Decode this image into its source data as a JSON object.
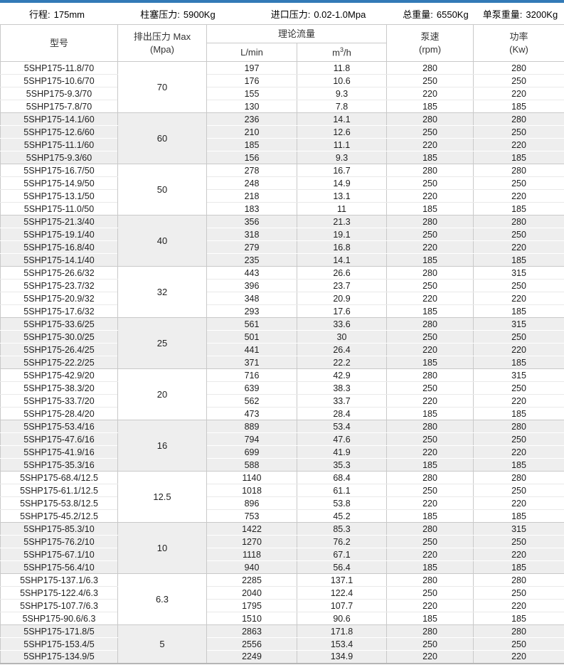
{
  "colors": {
    "accent": "#337ab7",
    "group_alt_bg": "#eeeeee",
    "border": "#c9c9c9"
  },
  "summary": {
    "items": [
      {
        "label": "行程:",
        "value": "175mm"
      },
      {
        "label": "柱塞压力:",
        "value": "5900Kg"
      },
      {
        "label": "进口压力:",
        "value": "0.02-1.0Mpa"
      },
      {
        "label": "总重量:",
        "value": "6550Kg"
      },
      {
        "label": "单泵重量:",
        "value": "3200Kg"
      }
    ]
  },
  "table": {
    "headers": {
      "model": "型号",
      "pressure_line1": "排出压力 Max",
      "pressure_line2": "(Mpa)",
      "flow": "理论流量",
      "flow_lmin": "L/min",
      "flow_m3h_base": "m",
      "flow_m3h_sup": "3",
      "flow_m3h_rest": "/h",
      "speed_line1": "泵速",
      "speed_line2": "(rpm)",
      "power_line1": "功率",
      "power_line2": "(Kw)"
    },
    "groups": [
      {
        "pressure": "70",
        "rows": [
          {
            "model": "5SHP175-11.8/70",
            "lmin": "197",
            "m3h": "11.8",
            "rpm": "280",
            "kw": "280"
          },
          {
            "model": "5SHP175-10.6/70",
            "lmin": "176",
            "m3h": "10.6",
            "rpm": "250",
            "kw": "250"
          },
          {
            "model": "5SHP175-9.3/70",
            "lmin": "155",
            "m3h": "9.3",
            "rpm": "220",
            "kw": "220"
          },
          {
            "model": "5SHP175-7.8/70",
            "lmin": "130",
            "m3h": "7.8",
            "rpm": "185",
            "kw": "185"
          }
        ]
      },
      {
        "pressure": "60",
        "rows": [
          {
            "model": "5SHP175-14.1/60",
            "lmin": "236",
            "m3h": "14.1",
            "rpm": "280",
            "kw": "280"
          },
          {
            "model": "5SHP175-12.6/60",
            "lmin": "210",
            "m3h": "12.6",
            "rpm": "250",
            "kw": "250"
          },
          {
            "model": "5SHP175-11.1/60",
            "lmin": "185",
            "m3h": "11.1",
            "rpm": "220",
            "kw": "220"
          },
          {
            "model": "5SHP175-9.3/60",
            "lmin": "156",
            "m3h": "9.3",
            "rpm": "185",
            "kw": "185"
          }
        ]
      },
      {
        "pressure": "50",
        "rows": [
          {
            "model": "5SHP175-16.7/50",
            "lmin": "278",
            "m3h": "16.7",
            "rpm": "280",
            "kw": "280"
          },
          {
            "model": "5SHP175-14.9/50",
            "lmin": "248",
            "m3h": "14.9",
            "rpm": "250",
            "kw": "250"
          },
          {
            "model": "5SHP175-13.1/50",
            "lmin": "218",
            "m3h": "13.1",
            "rpm": "220",
            "kw": "220"
          },
          {
            "model": "5SHP175-11.0/50",
            "lmin": "183",
            "m3h": "11",
            "rpm": "185",
            "kw": "185"
          }
        ]
      },
      {
        "pressure": "40",
        "rows": [
          {
            "model": "5SHP175-21.3/40",
            "lmin": "356",
            "m3h": "21.3",
            "rpm": "280",
            "kw": "280"
          },
          {
            "model": "5SHP175-19.1/40",
            "lmin": "318",
            "m3h": "19.1",
            "rpm": "250",
            "kw": "250"
          },
          {
            "model": "5SHP175-16.8/40",
            "lmin": "279",
            "m3h": "16.8",
            "rpm": "220",
            "kw": "220"
          },
          {
            "model": "5SHP175-14.1/40",
            "lmin": "235",
            "m3h": "14.1",
            "rpm": "185",
            "kw": "185"
          }
        ]
      },
      {
        "pressure": "32",
        "rows": [
          {
            "model": "5SHP175-26.6/32",
            "lmin": "443",
            "m3h": "26.6",
            "rpm": "280",
            "kw": "315"
          },
          {
            "model": "5SHP175-23.7/32",
            "lmin": "396",
            "m3h": "23.7",
            "rpm": "250",
            "kw": "250"
          },
          {
            "model": "5SHP175-20.9/32",
            "lmin": "348",
            "m3h": "20.9",
            "rpm": "220",
            "kw": "220"
          },
          {
            "model": "5SHP175-17.6/32",
            "lmin": "293",
            "m3h": "17.6",
            "rpm": "185",
            "kw": "185"
          }
        ]
      },
      {
        "pressure": "25",
        "rows": [
          {
            "model": "5SHP175-33.6/25",
            "lmin": "561",
            "m3h": "33.6",
            "rpm": "280",
            "kw": "315"
          },
          {
            "model": "5SHP175-30.0/25",
            "lmin": "501",
            "m3h": "30",
            "rpm": "250",
            "kw": "250"
          },
          {
            "model": "5SHP175-26.4/25",
            "lmin": "441",
            "m3h": "26.4",
            "rpm": "220",
            "kw": "220"
          },
          {
            "model": "5SHP175-22.2/25",
            "lmin": "371",
            "m3h": "22.2",
            "rpm": "185",
            "kw": "185"
          }
        ]
      },
      {
        "pressure": "20",
        "rows": [
          {
            "model": "5SHP175-42.9/20",
            "lmin": "716",
            "m3h": "42.9",
            "rpm": "280",
            "kw": "315"
          },
          {
            "model": "5SHP175-38.3/20",
            "lmin": "639",
            "m3h": "38.3",
            "rpm": "250",
            "kw": "250"
          },
          {
            "model": "5SHP175-33.7/20",
            "lmin": "562",
            "m3h": "33.7",
            "rpm": "220",
            "kw": "220"
          },
          {
            "model": "5SHP175-28.4/20",
            "lmin": "473",
            "m3h": "28.4",
            "rpm": "185",
            "kw": "185"
          }
        ]
      },
      {
        "pressure": "16",
        "rows": [
          {
            "model": "5SHP175-53.4/16",
            "lmin": "889",
            "m3h": "53.4",
            "rpm": "280",
            "kw": "280"
          },
          {
            "model": "5SHP175-47.6/16",
            "lmin": "794",
            "m3h": "47.6",
            "rpm": "250",
            "kw": "250"
          },
          {
            "model": "5SHP175-41.9/16",
            "lmin": "699",
            "m3h": "41.9",
            "rpm": "220",
            "kw": "220"
          },
          {
            "model": "5SHP175-35.3/16",
            "lmin": "588",
            "m3h": "35.3",
            "rpm": "185",
            "kw": "185"
          }
        ]
      },
      {
        "pressure": "12.5",
        "rows": [
          {
            "model": "5SHP175-68.4/12.5",
            "lmin": "1140",
            "m3h": "68.4",
            "rpm": "280",
            "kw": "280"
          },
          {
            "model": "5SHP175-61.1/12.5",
            "lmin": "1018",
            "m3h": "61.1",
            "rpm": "250",
            "kw": "250"
          },
          {
            "model": "5SHP175-53.8/12.5",
            "lmin": "896",
            "m3h": "53.8",
            "rpm": "220",
            "kw": "220"
          },
          {
            "model": "5SHP175-45.2/12.5",
            "lmin": "753",
            "m3h": "45.2",
            "rpm": "185",
            "kw": "185"
          }
        ]
      },
      {
        "pressure": "10",
        "rows": [
          {
            "model": "5SHP175-85.3/10",
            "lmin": "1422",
            "m3h": "85.3",
            "rpm": "280",
            "kw": "315"
          },
          {
            "model": "5SHP175-76.2/10",
            "lmin": "1270",
            "m3h": "76.2",
            "rpm": "250",
            "kw": "250"
          },
          {
            "model": "5SHP175-67.1/10",
            "lmin": "1118",
            "m3h": "67.1",
            "rpm": "220",
            "kw": "220"
          },
          {
            "model": "5SHP175-56.4/10",
            "lmin": "940",
            "m3h": "56.4",
            "rpm": "185",
            "kw": "185"
          }
        ]
      },
      {
        "pressure": "6.3",
        "rows": [
          {
            "model": "5SHP175-137.1/6.3",
            "lmin": "2285",
            "m3h": "137.1",
            "rpm": "280",
            "kw": "280"
          },
          {
            "model": "5SHP175-122.4/6.3",
            "lmin": "2040",
            "m3h": "122.4",
            "rpm": "250",
            "kw": "250"
          },
          {
            "model": "5SHP175-107.7/6.3",
            "lmin": "1795",
            "m3h": "107.7",
            "rpm": "220",
            "kw": "220"
          },
          {
            "model": "5SHP175-90.6/6.3",
            "lmin": "1510",
            "m3h": "90.6",
            "rpm": "185",
            "kw": "185"
          }
        ]
      },
      {
        "pressure": "5",
        "rows": [
          {
            "model": "5SHP175-171.8/5",
            "lmin": "2863",
            "m3h": "171.8",
            "rpm": "280",
            "kw": "280"
          },
          {
            "model": "5SHP175-153.4/5",
            "lmin": "2556",
            "m3h": "153.4",
            "rpm": "250",
            "kw": "250"
          },
          {
            "model": "5SHP175-134.9/5",
            "lmin": "2249",
            "m3h": "134.9",
            "rpm": "220",
            "kw": "220"
          }
        ]
      }
    ]
  }
}
